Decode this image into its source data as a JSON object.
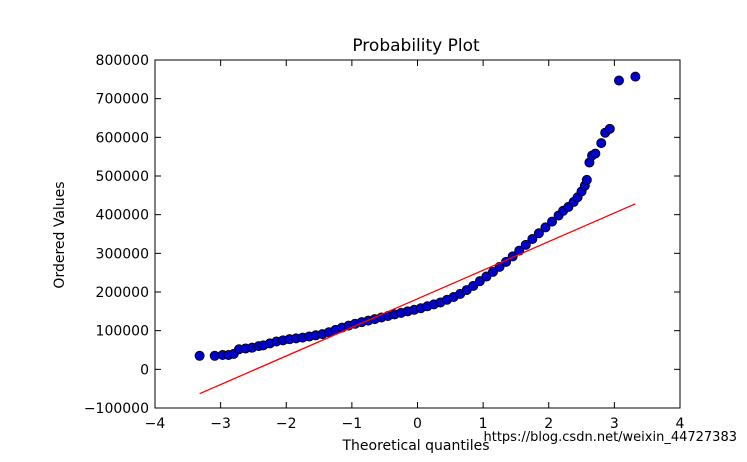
{
  "chart_data": {
    "type": "scatter",
    "title": "Probability Plot",
    "xlabel": "Theoretical quantiles",
    "ylabel": "Ordered Values",
    "xlim": [
      -4,
      4
    ],
    "ylim": [
      -100000,
      800000
    ],
    "x_ticks": [
      -4,
      -3,
      -2,
      -1,
      0,
      1,
      2,
      3,
      4
    ],
    "x_tick_labels": [
      "−4",
      "−3",
      "−2",
      "−1",
      "0",
      "1",
      "2",
      "3",
      "4"
    ],
    "y_ticks": [
      -100000,
      0,
      100000,
      200000,
      300000,
      400000,
      500000,
      600000,
      700000,
      800000
    ],
    "y_tick_labels": [
      "−100000",
      "0",
      "100000",
      "200000",
      "300000",
      "400000",
      "500000",
      "600000",
      "700000",
      "800000"
    ],
    "grid": false,
    "series": [
      {
        "kind": "points",
        "color": "#0000cc",
        "points": [
          [
            -3.32,
            35000
          ],
          [
            -3.09,
            35000
          ],
          [
            -2.97,
            37000
          ],
          [
            -2.88,
            37000
          ],
          [
            -2.8,
            40000
          ],
          [
            -2.72,
            52000
          ],
          [
            -2.62,
            54000
          ],
          [
            -2.52,
            56000
          ],
          [
            -2.42,
            60000
          ],
          [
            -2.35,
            62000
          ],
          [
            -2.25,
            67000
          ],
          [
            -2.15,
            72000
          ],
          [
            -2.05,
            75000
          ],
          [
            -1.95,
            78000
          ],
          [
            -1.85,
            80000
          ],
          [
            -1.75,
            82000
          ],
          [
            -1.65,
            85000
          ],
          [
            -1.55,
            88000
          ],
          [
            -1.45,
            91000
          ],
          [
            -1.35,
            96000
          ],
          [
            -1.25,
            102000
          ],
          [
            -1.15,
            108000
          ],
          [
            -1.05,
            113000
          ],
          [
            -0.95,
            118000
          ],
          [
            -0.85,
            122000
          ],
          [
            -0.75,
            126000
          ],
          [
            -0.65,
            130000
          ],
          [
            -0.55,
            134000
          ],
          [
            -0.45,
            138000
          ],
          [
            -0.35,
            142000
          ],
          [
            -0.25,
            146000
          ],
          [
            -0.15,
            150000
          ],
          [
            -0.05,
            154000
          ],
          [
            0.05,
            158000
          ],
          [
            0.15,
            163000
          ],
          [
            0.25,
            168000
          ],
          [
            0.35,
            173000
          ],
          [
            0.45,
            180000
          ],
          [
            0.55,
            187000
          ],
          [
            0.65,
            195000
          ],
          [
            0.75,
            205000
          ],
          [
            0.85,
            216000
          ],
          [
            0.95,
            228000
          ],
          [
            1.05,
            240000
          ],
          [
            1.15,
            252000
          ],
          [
            1.25,
            265000
          ],
          [
            1.35,
            278000
          ],
          [
            1.45,
            292000
          ],
          [
            1.55,
            307000
          ],
          [
            1.65,
            322000
          ],
          [
            1.75,
            337000
          ],
          [
            1.85,
            352000
          ],
          [
            1.95,
            367000
          ],
          [
            2.05,
            382000
          ],
          [
            2.15,
            398000
          ],
          [
            2.22,
            410000
          ],
          [
            2.3,
            420000
          ],
          [
            2.38,
            433000
          ],
          [
            2.44,
            445000
          ],
          [
            2.5,
            460000
          ],
          [
            2.55,
            475000
          ],
          [
            2.58,
            490000
          ],
          [
            2.62,
            535000
          ],
          [
            2.66,
            553000
          ],
          [
            2.71,
            558000
          ],
          [
            2.8,
            585000
          ],
          [
            2.86,
            612000
          ],
          [
            2.93,
            622000
          ],
          [
            3.07,
            747000
          ],
          [
            3.32,
            757000
          ]
        ]
      },
      {
        "kind": "fit-line",
        "color": "#ff0000",
        "x": [
          -3.32,
          3.32
        ],
        "y": [
          -63000,
          428000
        ]
      }
    ]
  },
  "watermark": "https://blog.csdn.net/weixin_44727383"
}
